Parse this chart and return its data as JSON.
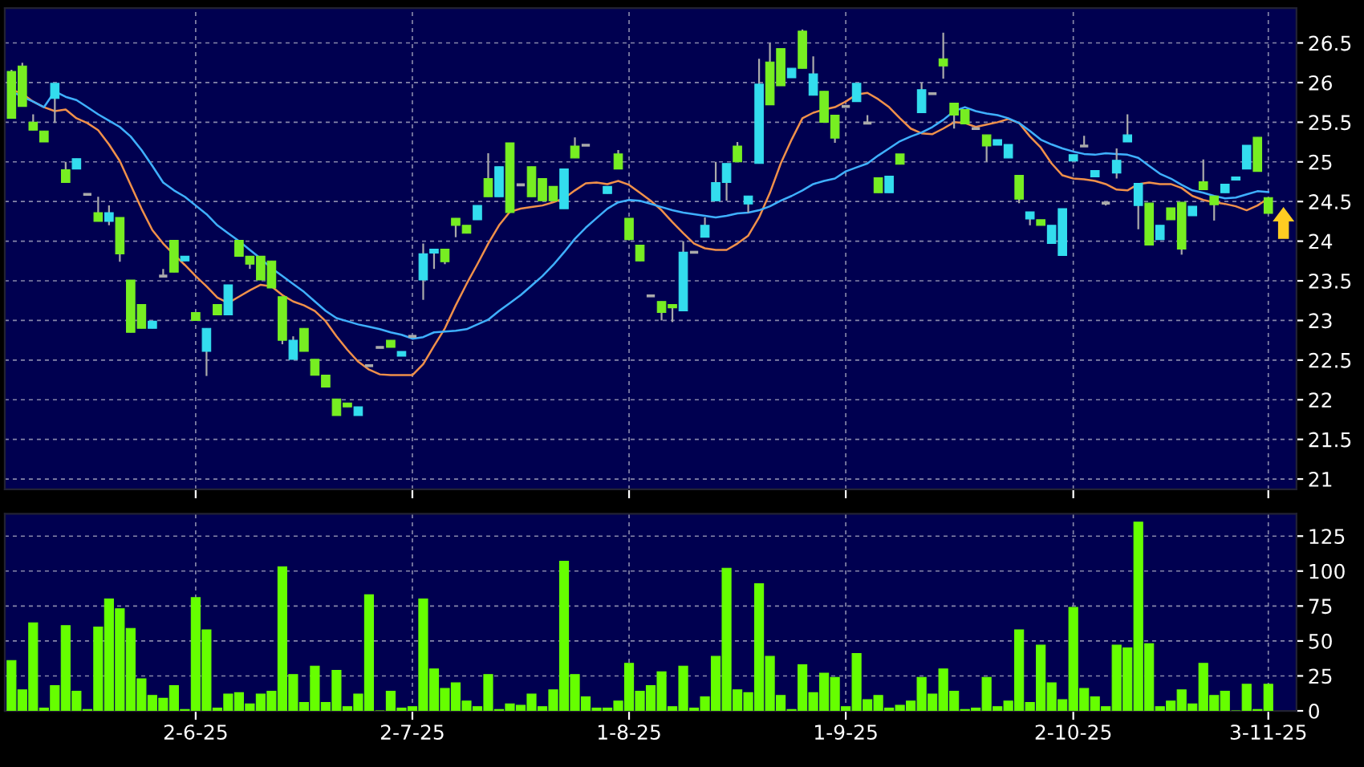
{
  "chart_data": [
    {
      "type": "candlestick",
      "tick_labels": "y",
      "grid": true,
      "ylim": [
        20.87,
        26.94
      ],
      "yticks": [
        21,
        21.5,
        22,
        22.5,
        23,
        23.5,
        24,
        24.5,
        25,
        25.5,
        26,
        26.5
      ],
      "categories": [
        null,
        null,
        null,
        null,
        null,
        null,
        null,
        null,
        null,
        null,
        null,
        null,
        null,
        null,
        null,
        null,
        null,
        null,
        null,
        null,
        null,
        null,
        null,
        null,
        null,
        null,
        null,
        null,
        null,
        null,
        null,
        null,
        null,
        null,
        null,
        null,
        null,
        null,
        null,
        null,
        null,
        null,
        null,
        null,
        null,
        null,
        null,
        null,
        null,
        null,
        null,
        null,
        null,
        null,
        null,
        null,
        null,
        null,
        null,
        null,
        null,
        null,
        null,
        null,
        null,
        null,
        null,
        null,
        null,
        null,
        null,
        null,
        null,
        null,
        null,
        null,
        null,
        null,
        null,
        null,
        null,
        null,
        null,
        null,
        null,
        null,
        null,
        null,
        null,
        null,
        null,
        null,
        null,
        null,
        null,
        null,
        null,
        null,
        null,
        null,
        null,
        null,
        null,
        null,
        null,
        null,
        null,
        null,
        null,
        null,
        null,
        null,
        null,
        null,
        null,
        null,
        null
      ],
      "ohlc": [
        [
          26.14,
          26.16,
          25.55,
          25.55
        ],
        [
          26.21,
          26.25,
          25.7,
          25.7
        ],
        [
          25.5,
          25.6,
          25.4,
          25.4
        ],
        [
          25.39,
          25.39,
          25.25,
          25.25
        ],
        [
          25.8,
          25.99,
          25.49,
          25.99
        ],
        [
          24.9,
          25.0,
          24.74,
          24.74
        ],
        [
          24.91,
          25.04,
          24.91,
          25.04
        ],
        [
          24.59,
          24.59,
          24.59,
          24.59
        ],
        [
          24.36,
          24.56,
          24.25,
          24.25
        ],
        [
          24.25,
          24.45,
          24.2,
          24.36
        ],
        [
          24.3,
          24.3,
          23.74,
          23.84
        ],
        [
          23.51,
          23.51,
          22.85,
          22.85
        ],
        [
          23.2,
          23.2,
          22.9,
          22.9
        ],
        [
          22.9,
          22.99,
          22.9,
          22.99
        ],
        [
          23.56,
          23.65,
          23.56,
          23.56
        ],
        [
          24.01,
          24.01,
          23.61,
          23.61
        ],
        [
          23.75,
          23.81,
          23.75,
          23.81
        ],
        [
          23.1,
          23.1,
          23.0,
          23.0
        ],
        [
          22.61,
          22.9,
          22.3,
          22.9
        ],
        [
          23.2,
          23.2,
          23.07,
          23.07
        ],
        [
          23.07,
          23.45,
          23.07,
          23.45
        ],
        [
          24.01,
          24.01,
          23.81,
          23.81
        ],
        [
          23.81,
          23.81,
          23.65,
          23.71
        ],
        [
          23.81,
          23.81,
          23.51,
          23.51
        ],
        [
          23.75,
          23.75,
          23.41,
          23.41
        ],
        [
          23.3,
          23.3,
          22.7,
          22.75
        ],
        [
          22.51,
          22.8,
          22.51,
          22.75
        ],
        [
          22.9,
          22.9,
          22.61,
          22.61
        ],
        [
          22.51,
          22.51,
          22.31,
          22.31
        ],
        [
          22.31,
          22.31,
          22.16,
          22.16
        ],
        [
          22.01,
          22.01,
          21.8,
          21.8
        ],
        [
          21.96,
          21.96,
          21.91,
          21.91
        ],
        [
          21.8,
          21.91,
          21.8,
          21.91
        ],
        [
          22.43,
          22.43,
          22.43,
          22.43
        ],
        [
          22.66,
          22.66,
          22.66,
          22.66
        ],
        [
          22.75,
          22.75,
          22.66,
          22.66
        ],
        [
          22.55,
          22.61,
          22.55,
          22.61
        ],
        [
          22.8,
          22.8,
          22.8,
          22.8
        ],
        [
          23.51,
          23.97,
          23.26,
          23.84
        ],
        [
          23.85,
          23.9,
          23.65,
          23.9
        ],
        [
          23.9,
          23.9,
          23.71,
          23.74
        ],
        [
          24.29,
          24.29,
          24.05,
          24.2
        ],
        [
          24.2,
          24.2,
          24.1,
          24.1
        ],
        [
          24.27,
          24.45,
          24.27,
          24.45
        ],
        [
          24.79,
          25.11,
          24.56,
          24.56
        ],
        [
          24.56,
          24.94,
          24.56,
          24.94
        ],
        [
          25.24,
          25.24,
          24.36,
          24.36
        ],
        [
          24.71,
          24.71,
          24.71,
          24.71
        ],
        [
          24.94,
          24.94,
          24.56,
          24.56
        ],
        [
          24.79,
          24.79,
          24.51,
          24.51
        ],
        [
          24.69,
          24.69,
          24.51,
          24.51
        ],
        [
          24.41,
          24.91,
          24.41,
          24.91
        ],
        [
          25.2,
          25.31,
          25.05,
          25.05
        ],
        [
          25.21,
          25.21,
          25.21,
          25.21
        ],
        null,
        [
          24.6,
          24.69,
          24.6,
          24.69
        ],
        [
          25.1,
          25.15,
          24.91,
          24.91
        ],
        [
          24.29,
          24.29,
          24.02,
          24.02
        ],
        [
          23.95,
          23.95,
          23.75,
          23.75
        ],
        [
          23.31,
          23.31,
          23.31,
          23.31
        ],
        [
          23.24,
          23.24,
          23.0,
          23.1
        ],
        [
          23.2,
          23.2,
          22.98,
          23.16
        ],
        [
          23.12,
          24.0,
          23.12,
          23.86
        ],
        [
          23.86,
          23.86,
          23.86,
          23.86
        ],
        [
          24.05,
          24.3,
          24.05,
          24.2
        ],
        [
          24.51,
          25.0,
          24.51,
          24.74
        ],
        [
          24.74,
          24.98,
          24.51,
          24.98
        ],
        [
          25.2,
          25.25,
          25.0,
          25.0
        ],
        [
          24.47,
          24.57,
          24.36,
          24.57
        ],
        [
          24.98,
          26.3,
          24.98,
          25.98
        ],
        [
          26.26,
          26.5,
          25.72,
          25.72
        ],
        [
          26.43,
          26.43,
          25.96,
          25.96
        ],
        [
          26.06,
          26.18,
          26.06,
          26.18
        ],
        [
          26.65,
          26.67,
          26.18,
          26.18
        ],
        [
          25.84,
          26.33,
          25.84,
          26.11
        ],
        [
          25.89,
          25.89,
          25.5,
          25.5
        ],
        [
          25.59,
          25.59,
          25.24,
          25.3
        ],
        [
          25.7,
          25.7,
          25.7,
          25.7
        ],
        [
          25.76,
          25.99,
          25.76,
          25.99
        ],
        [
          25.49,
          25.59,
          25.49,
          25.49
        ],
        [
          24.8,
          24.8,
          24.61,
          24.61
        ],
        [
          24.61,
          24.82,
          24.61,
          24.82
        ],
        [
          25.1,
          25.1,
          24.97,
          24.97
        ],
        null,
        [
          25.62,
          26.0,
          25.62,
          25.91
        ],
        [
          25.86,
          25.86,
          25.86,
          25.86
        ],
        [
          26.3,
          26.63,
          26.05,
          26.21
        ],
        [
          25.74,
          25.74,
          25.42,
          25.59
        ],
        [
          25.66,
          25.66,
          25.48,
          25.48
        ],
        [
          25.42,
          25.42,
          25.42,
          25.42
        ],
        [
          25.34,
          25.34,
          25.0,
          25.2
        ],
        [
          25.21,
          25.28,
          25.21,
          25.28
        ],
        [
          25.05,
          25.22,
          25.05,
          25.22
        ],
        [
          24.83,
          24.83,
          24.48,
          24.53
        ],
        [
          24.28,
          24.37,
          24.2,
          24.37
        ],
        [
          24.27,
          24.27,
          24.2,
          24.2
        ],
        [
          23.97,
          24.2,
          23.97,
          24.2
        ],
        [
          23.82,
          24.41,
          23.82,
          24.41
        ],
        [
          25.01,
          25.09,
          25.01,
          25.09
        ],
        [
          25.2,
          25.33,
          25.2,
          25.2
        ],
        [
          24.81,
          24.89,
          24.81,
          24.89
        ],
        [
          24.48,
          24.48,
          24.45,
          24.48
        ],
        [
          24.86,
          25.17,
          24.79,
          25.02
        ],
        [
          25.25,
          25.6,
          25.25,
          25.34
        ],
        [
          24.45,
          24.73,
          24.15,
          24.73
        ],
        [
          24.48,
          24.48,
          23.95,
          23.95
        ],
        [
          24.02,
          24.2,
          24.02,
          24.2
        ],
        [
          24.42,
          24.42,
          24.27,
          24.27
        ],
        [
          24.49,
          24.49,
          23.83,
          23.9
        ],
        [
          24.32,
          24.44,
          24.32,
          24.44
        ],
        [
          24.75,
          25.03,
          24.65,
          24.65
        ],
        [
          24.57,
          24.57,
          24.26,
          24.46
        ],
        [
          24.61,
          24.72,
          24.61,
          24.72
        ],
        [
          24.77,
          24.81,
          24.77,
          24.81
        ],
        [
          24.91,
          25.21,
          24.91,
          25.21
        ],
        [
          25.31,
          25.31,
          24.88,
          24.88
        ],
        [
          24.55,
          24.55,
          24.35,
          24.35
        ]
      ],
      "colors": [
        "#77ee22",
        "#77ee22",
        "#77ee22",
        "#77ee22",
        "#33ddee",
        "#77ee22",
        "#33ddee",
        "#aaaaaa",
        "#77ee22",
        "#33ddee",
        "#77ee22",
        "#77ee22",
        "#77ee22",
        "#33ddee",
        "#aaaaaa",
        "#77ee22",
        "#33ddee",
        "#77ee22",
        "#33ddee",
        "#77ee22",
        "#33ddee",
        "#77ee22",
        "#77ee22",
        "#77ee22",
        "#77ee22",
        "#77ee22",
        "#33ddee",
        "#77ee22",
        "#77ee22",
        "#77ee22",
        "#77ee22",
        "#77ee22",
        "#33ddee",
        "#aaaaaa",
        "#aaaaaa",
        "#77ee22",
        "#33ddee",
        "#aaaaaa",
        "#33ddee",
        "#33ddee",
        "#77ee22",
        "#77ee22",
        "#77ee22",
        "#33ddee",
        "#77ee22",
        "#33ddee",
        "#77ee22",
        "#aaaaaa",
        "#77ee22",
        "#77ee22",
        "#77ee22",
        "#33ddee",
        "#77ee22",
        "#aaaaaa",
        null,
        "#33ddee",
        "#77ee22",
        "#77ee22",
        "#77ee22",
        "#aaaaaa",
        "#77ee22",
        "#77ee22",
        "#33ddee",
        "#aaaaaa",
        "#33ddee",
        "#33ddee",
        "#33ddee",
        "#77ee22",
        "#33ddee",
        "#33ddee",
        "#77ee22",
        "#77ee22",
        "#33ddee",
        "#77ee22",
        "#33ddee",
        "#77ee22",
        "#77ee22",
        "#aaaaaa",
        "#33ddee",
        "#aaaaaa",
        "#77ee22",
        "#33ddee",
        "#77ee22",
        null,
        "#33ddee",
        "#aaaaaa",
        "#77ee22",
        "#77ee22",
        "#77ee22",
        "#aaaaaa",
        "#77ee22",
        "#33ddee",
        "#33ddee",
        "#77ee22",
        "#33ddee",
        "#77ee22",
        "#33ddee",
        "#33ddee",
        "#33ddee",
        "#aaaaaa",
        "#33ddee",
        "#aaaaaa",
        "#33ddee",
        "#33ddee",
        "#33ddee",
        "#77ee22",
        "#33ddee",
        "#77ee22",
        "#77ee22",
        "#33ddee",
        "#77ee22",
        "#77ee22",
        "#33ddee",
        "#33ddee",
        "#33ddee",
        "#77ee22",
        "#77ee22"
      ],
      "series": [
        {
          "type": "line",
          "color": "#f0904a",
          "values": [
            25.91,
            25.86,
            25.76,
            25.69,
            25.64,
            25.66,
            25.55,
            25.49,
            25.4,
            25.22,
            25.01,
            24.71,
            24.41,
            24.14,
            23.97,
            23.83,
            23.7,
            23.56,
            23.43,
            23.29,
            23.22,
            23.3,
            23.38,
            23.45,
            23.43,
            23.32,
            23.24,
            23.19,
            23.12,
            22.99,
            22.8,
            22.63,
            22.48,
            22.38,
            22.32,
            22.31,
            22.31,
            22.31,
            22.45,
            22.68,
            22.9,
            23.19,
            23.46,
            23.71,
            23.97,
            24.2,
            24.37,
            24.41,
            24.43,
            24.45,
            24.49,
            24.54,
            24.64,
            24.73,
            24.74,
            24.72,
            24.76,
            24.71,
            24.61,
            24.51,
            24.39,
            24.24,
            24.1,
            23.97,
            23.91,
            23.89,
            23.89,
            23.97,
            24.07,
            24.3,
            24.61,
            24.98,
            25.28,
            25.55,
            25.62,
            25.66,
            25.69,
            25.76,
            25.85,
            25.87,
            25.79,
            25.69,
            25.55,
            25.42,
            25.36,
            25.35,
            25.42,
            25.5,
            25.49,
            25.44,
            25.47,
            25.5,
            25.54,
            25.49,
            25.32,
            25.18,
            24.98,
            24.83,
            24.79,
            24.78,
            24.76,
            24.72,
            24.65,
            24.64,
            24.72,
            24.74,
            24.72,
            24.72,
            24.67,
            24.57,
            24.52,
            24.49,
            24.47,
            24.44,
            24.39,
            24.45,
            24.54
          ]
        },
        {
          "type": "line",
          "color": "#3fb0ff",
          "values": [
            25.89,
            25.82,
            25.76,
            25.69,
            25.89,
            25.82,
            25.78,
            25.69,
            25.6,
            25.52,
            25.44,
            25.32,
            25.15,
            24.95,
            24.74,
            24.64,
            24.56,
            24.45,
            24.34,
            24.2,
            24.1,
            24.0,
            23.89,
            23.78,
            23.66,
            23.56,
            23.46,
            23.36,
            23.24,
            23.12,
            23.03,
            22.99,
            22.95,
            22.92,
            22.89,
            22.85,
            22.82,
            22.77,
            22.79,
            22.85,
            22.86,
            22.87,
            22.89,
            22.95,
            23.01,
            23.12,
            23.22,
            23.32,
            23.44,
            23.56,
            23.7,
            23.86,
            24.03,
            24.17,
            24.29,
            24.41,
            24.49,
            24.52,
            24.51,
            24.47,
            24.43,
            24.39,
            24.36,
            24.34,
            24.32,
            24.3,
            24.32,
            24.35,
            24.36,
            24.39,
            24.44,
            24.51,
            24.57,
            24.64,
            24.72,
            24.76,
            24.79,
            24.88,
            24.93,
            24.98,
            25.08,
            25.17,
            25.26,
            25.32,
            25.37,
            25.44,
            25.53,
            25.64,
            25.69,
            25.64,
            25.61,
            25.59,
            25.55,
            25.49,
            25.39,
            25.28,
            25.22,
            25.17,
            25.13,
            25.1,
            25.09,
            25.11,
            25.1,
            25.09,
            25.05,
            24.95,
            24.85,
            24.79,
            24.71,
            24.64,
            24.61,
            24.57,
            24.54,
            24.55,
            24.59,
            24.63,
            24.62
          ]
        }
      ]
    },
    {
      "type": "bar",
      "grid": true,
      "color": "#66ff00",
      "ylim": [
        0,
        141
      ],
      "yticks": [
        0,
        25,
        50,
        75,
        100,
        125
      ],
      "categories": [
        null,
        null,
        null,
        null,
        null,
        null,
        null,
        null,
        null,
        null,
        null,
        null,
        null,
        null,
        null,
        null,
        null,
        "2-6-25",
        null,
        null,
        null,
        null,
        null,
        null,
        null,
        null,
        null,
        null,
        null,
        null,
        null,
        null,
        null,
        null,
        null,
        null,
        null,
        "2-7-25",
        null,
        null,
        null,
        null,
        null,
        null,
        null,
        null,
        null,
        null,
        null,
        null,
        null,
        null,
        null,
        null,
        null,
        null,
        null,
        "1-8-25",
        null,
        null,
        null,
        null,
        null,
        null,
        null,
        null,
        null,
        null,
        null,
        null,
        null,
        null,
        null,
        null,
        null,
        null,
        null,
        "1-9-25",
        null,
        null,
        null,
        null,
        null,
        null,
        null,
        null,
        null,
        null,
        null,
        null,
        null,
        null,
        null,
        null,
        null,
        null,
        null,
        null,
        "2-10-25",
        null,
        null,
        null,
        null,
        null,
        null,
        null,
        null,
        null,
        null,
        null,
        null,
        null,
        null,
        null,
        null,
        null,
        "3-11-25"
      ],
      "values": [
        36,
        15,
        63,
        2,
        18,
        61,
        14,
        1,
        60,
        80,
        73,
        59,
        23,
        11,
        9,
        18,
        1,
        81,
        58,
        2,
        12,
        13,
        5,
        12,
        14,
        103,
        26,
        6,
        32,
        6,
        29,
        3,
        12,
        83,
        0,
        14,
        2,
        3,
        80,
        30,
        16,
        20,
        7,
        3,
        26,
        1,
        5,
        4,
        12,
        3,
        15,
        107,
        26,
        10,
        2,
        2,
        7,
        34,
        14,
        18,
        28,
        3,
        32,
        2,
        10,
        39,
        102,
        15,
        13,
        91,
        39,
        11,
        1,
        33,
        13,
        27,
        24,
        3,
        41,
        8,
        11,
        2,
        4,
        7,
        24,
        12,
        30,
        14,
        1,
        2,
        24,
        3,
        7,
        58,
        6,
        47,
        20,
        8,
        74,
        16,
        10,
        3,
        47,
        45,
        135,
        48,
        3,
        7,
        15,
        5,
        34,
        11,
        14,
        0,
        19,
        1,
        19
      ]
    }
  ]
}
